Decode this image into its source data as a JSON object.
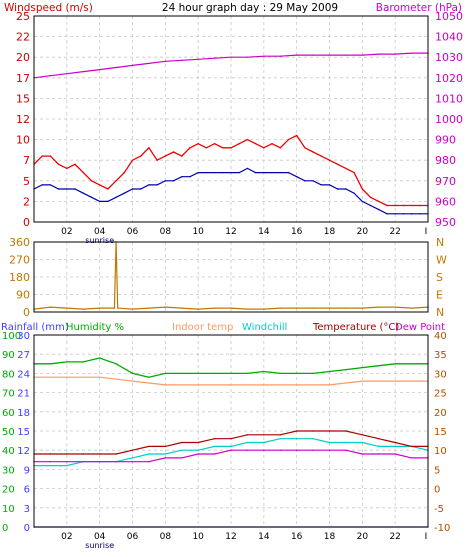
{
  "header": {
    "left_title": "Windspeed (m/s)",
    "center_title": "24 hour graph day : 29 May 2009",
    "right_title": "Barometer (hPa)"
  },
  "bottom_header": {
    "rainfall": "Rainfall (mm)",
    "humidity": "Humidity %",
    "indoor": "Indoor temp",
    "windchill": "Windchill",
    "temperature": "Temperature (°C)",
    "dewpoint": "Dew Point"
  },
  "x_axis": {
    "ticks": [
      "02",
      "04",
      "06",
      "08",
      "10",
      "12",
      "14",
      "16",
      "18",
      "20",
      "22",
      "I"
    ],
    "sunrise_label": "sunrise"
  },
  "colors": {
    "windspeed_label": "#d00000",
    "barometer_label": "#cc00cc",
    "gust": "#ee0000",
    "avg": "#0000aa",
    "baro": "#cc00cc",
    "direction": "#c07800",
    "rain_axis": "#4040ff",
    "humidity": "#00aa00",
    "indoor": "#ff9966",
    "windchill": "#00cccc",
    "temperature": "#aa0000",
    "dewpoint": "#cc00cc",
    "right_temp_axis": "#b05000",
    "grid": "#c8c8c8"
  },
  "chart_data": [
    {
      "type": "line",
      "title": "24 hour graph day : 29 May 2009",
      "xlim": [
        0,
        24
      ],
      "ylabel_left": "Windspeed (m/s)",
      "ylim_left": [
        0,
        25
      ],
      "yticks_left": [
        "0",
        "2",
        "5",
        "7",
        "10",
        "12",
        "15",
        "17",
        "20",
        "22",
        "25"
      ],
      "ylabel_right": "Barometer (hPa)",
      "ylim_right": [
        950,
        1050
      ],
      "yticks_right": [
        "950",
        "960",
        "970",
        "980",
        "990",
        "1000",
        "1010",
        "1020",
        "1030",
        "1040",
        "1050"
      ],
      "series": [
        {
          "name": "gust",
          "axis": "left",
          "x": [
            0,
            0.5,
            1,
            1.5,
            2,
            2.5,
            3,
            3.5,
            4,
            4.5,
            5,
            5.5,
            6,
            6.5,
            7,
            7.5,
            8,
            8.5,
            9,
            9.5,
            10,
            10.5,
            11,
            11.5,
            12,
            12.5,
            13,
            13.5,
            14,
            14.5,
            15,
            15.5,
            16,
            16.5,
            17,
            17.5,
            18,
            18.5,
            19,
            19.5,
            20,
            20.5,
            21,
            21.5,
            22,
            22.5,
            23,
            23.5,
            24
          ],
          "values": [
            7,
            8,
            8,
            7,
            6.5,
            7,
            6,
            5,
            4.5,
            4,
            5,
            6,
            7.5,
            8,
            9,
            7.5,
            8,
            8.5,
            8,
            9,
            9.5,
            9,
            9.5,
            9,
            9,
            9.5,
            10,
            9.5,
            9,
            9.5,
            9,
            10,
            10.5,
            9,
            8.5,
            8,
            7.5,
            7,
            6.5,
            6,
            4,
            3,
            2.5,
            2,
            2,
            2,
            2,
            2,
            2
          ]
        },
        {
          "name": "average",
          "axis": "left",
          "x": [
            0,
            0.5,
            1,
            1.5,
            2,
            2.5,
            3,
            3.5,
            4,
            4.5,
            5,
            5.5,
            6,
            6.5,
            7,
            7.5,
            8,
            8.5,
            9,
            9.5,
            10,
            10.5,
            11,
            11.5,
            12,
            12.5,
            13,
            13.5,
            14,
            14.5,
            15,
            15.5,
            16,
            16.5,
            17,
            17.5,
            18,
            18.5,
            19,
            19.5,
            20,
            20.5,
            21,
            21.5,
            22,
            22.5,
            23,
            23.5,
            24
          ],
          "values": [
            4,
            4.5,
            4.5,
            4,
            4,
            4,
            3.5,
            3,
            2.5,
            2.5,
            3,
            3.5,
            4,
            4,
            4.5,
            4.5,
            5,
            5,
            5.5,
            5.5,
            6,
            6,
            6,
            6,
            6,
            6,
            6.5,
            6,
            6,
            6,
            6,
            6,
            5.5,
            5,
            5,
            4.5,
            4.5,
            4,
            4,
            3.5,
            2.5,
            2,
            1.5,
            1,
            1,
            1,
            1,
            1,
            1
          ]
        },
        {
          "name": "barometer",
          "axis": "right",
          "x": [
            0,
            1,
            2,
            3,
            4,
            5,
            6,
            7,
            8,
            9,
            10,
            11,
            12,
            13,
            14,
            15,
            16,
            17,
            18,
            19,
            20,
            21,
            22,
            23,
            24
          ],
          "values": [
            1020,
            1021,
            1022,
            1023,
            1024,
            1025,
            1026,
            1027,
            1028,
            1028.5,
            1029,
            1029.5,
            1030,
            1030,
            1030.5,
            1030.5,
            1031,
            1031,
            1031,
            1031,
            1031,
            1031.5,
            1031.5,
            1032,
            1032
          ]
        }
      ]
    },
    {
      "type": "line",
      "xlim": [
        0,
        24
      ],
      "ylim_left": [
        0,
        360
      ],
      "yticks_left": [
        "0",
        "90",
        "180",
        "270",
        "360"
      ],
      "yticks_right": [
        "N",
        "E",
        "S",
        "W",
        "N"
      ],
      "series": [
        {
          "name": "direction",
          "x": [
            0,
            1,
            2,
            3,
            4,
            4.9,
            5,
            5.1,
            6,
            7,
            8,
            9,
            10,
            11,
            12,
            13,
            14,
            15,
            16,
            17,
            18,
            19,
            20,
            21,
            22,
            23,
            24
          ],
          "values": [
            15,
            25,
            20,
            15,
            20,
            20,
            360,
            20,
            15,
            20,
            25,
            20,
            15,
            20,
            20,
            15,
            15,
            20,
            20,
            20,
            20,
            20,
            20,
            25,
            25,
            20,
            25
          ]
        }
      ]
    },
    {
      "type": "line",
      "xlim": [
        0,
        24
      ],
      "yticks_rain": [
        "0",
        "3",
        "6",
        "9",
        "12",
        "15",
        "18",
        "21",
        "24",
        "27",
        "30"
      ],
      "yticks_humidity": [
        "0",
        "10",
        "20",
        "30",
        "40",
        "50",
        "60",
        "70",
        "80",
        "90",
        "100"
      ],
      "ylim_temp": [
        -10,
        40
      ],
      "yticks_temp": [
        "-10",
        "-5",
        "0",
        "5",
        "10",
        "15",
        "20",
        "25",
        "30",
        "35",
        "40"
      ],
      "series": [
        {
          "name": "humidity",
          "axis": "humidity",
          "x": [
            0,
            1,
            2,
            3,
            4,
            5,
            6,
            7,
            8,
            9,
            10,
            11,
            12,
            13,
            14,
            15,
            16,
            17,
            18,
            19,
            20,
            21,
            22,
            23,
            24
          ],
          "values": [
            85,
            85,
            86,
            86,
            88,
            85,
            80,
            78,
            80,
            80,
            80,
            80,
            80,
            80,
            81,
            80,
            80,
            80,
            81,
            82,
            83,
            84,
            85,
            85,
            85
          ]
        },
        {
          "name": "indoor",
          "axis": "temp",
          "x": [
            0,
            2,
            4,
            6,
            8,
            10,
            12,
            14,
            16,
            18,
            20,
            22,
            24
          ],
          "values": [
            29,
            29,
            29,
            28,
            27,
            27,
            27,
            27,
            27,
            27,
            28,
            28,
            28
          ]
        },
        {
          "name": "windchill",
          "axis": "temp",
          "x": [
            0,
            1,
            2,
            3,
            4,
            5,
            6,
            7,
            8,
            9,
            10,
            11,
            12,
            13,
            14,
            15,
            16,
            17,
            18,
            19,
            20,
            21,
            22,
            23,
            24
          ],
          "values": [
            6,
            6,
            6,
            7,
            7,
            7,
            8,
            9,
            9,
            10,
            10,
            11,
            11,
            12,
            12,
            13,
            13,
            13,
            12,
            12,
            12,
            11,
            11,
            11,
            10
          ]
        },
        {
          "name": "temperature",
          "axis": "temp",
          "x": [
            0,
            1,
            2,
            3,
            4,
            5,
            6,
            7,
            8,
            9,
            10,
            11,
            12,
            13,
            14,
            15,
            16,
            17,
            18,
            19,
            20,
            21,
            22,
            23,
            24
          ],
          "values": [
            9,
            9,
            9,
            9,
            9,
            9,
            10,
            11,
            11,
            12,
            12,
            13,
            13,
            14,
            14,
            14,
            15,
            15,
            15,
            15,
            14,
            13,
            12,
            11,
            11
          ]
        },
        {
          "name": "dewpoint",
          "axis": "temp",
          "x": [
            0,
            1,
            2,
            3,
            4,
            5,
            6,
            7,
            8,
            9,
            10,
            11,
            12,
            13,
            14,
            15,
            16,
            17,
            18,
            19,
            20,
            21,
            22,
            23,
            24
          ],
          "values": [
            7,
            7,
            7,
            7,
            7,
            7,
            7,
            7,
            8,
            8,
            9,
            9,
            10,
            10,
            10,
            10,
            10,
            10,
            10,
            10,
            9,
            9,
            9,
            8,
            8
          ]
        },
        {
          "name": "rainfall",
          "axis": "rain",
          "x": [
            0,
            24
          ],
          "values": [
            0,
            0
          ]
        }
      ]
    }
  ]
}
